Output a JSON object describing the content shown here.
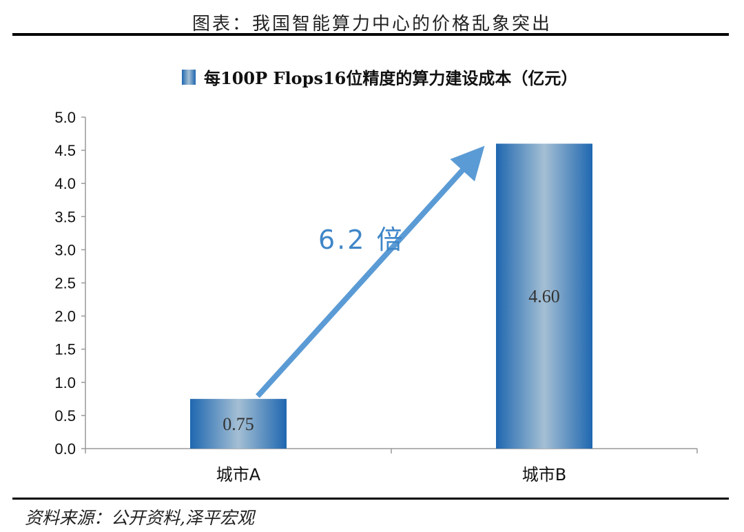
{
  "figure": {
    "title": "图表：我国智能算力中心的价格乱象突出",
    "source": "资料来源：公开资料,泽平宏观"
  },
  "chart_data": {
    "type": "bar",
    "categories": [
      "城市A",
      "城市B"
    ],
    "series": [
      {
        "name": "每100P Flops16位精度的算力建设成本（亿元）",
        "values": [
          0.75,
          4.6
        ],
        "labels": [
          "0.75",
          "4.60"
        ]
      }
    ],
    "ylim": [
      0,
      5.0
    ],
    "yticks": [
      "0.0",
      "0.5",
      "1.0",
      "1.5",
      "2.0",
      "2.5",
      "3.0",
      "3.5",
      "4.0",
      "4.5",
      "5.0"
    ],
    "legend": "top-center",
    "grid": false,
    "annotation": {
      "text": "6.2 倍",
      "from": "城市A",
      "to": "城市B",
      "color": "#5b9bd5"
    },
    "bar_color": "#2e75b6"
  }
}
